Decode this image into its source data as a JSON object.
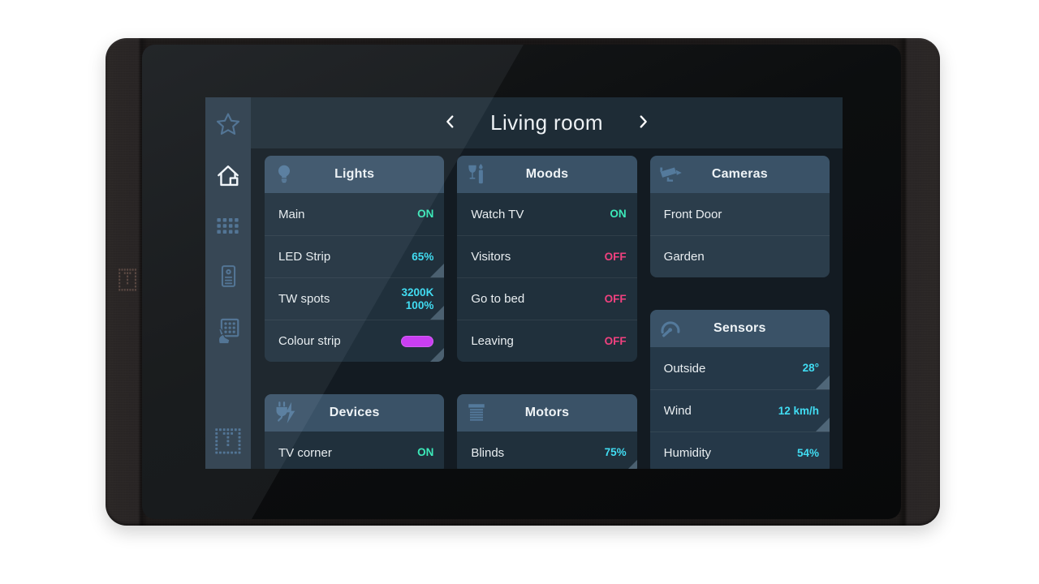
{
  "header": {
    "title": "Living room"
  },
  "sidebar": {
    "items": [
      {
        "id": "favourites",
        "icon": "star-icon",
        "active": false
      },
      {
        "id": "home",
        "icon": "home-icon",
        "active": true
      },
      {
        "id": "functions",
        "icon": "grid-dots-icon",
        "active": false
      },
      {
        "id": "intercom",
        "icon": "intercom-icon",
        "active": false
      },
      {
        "id": "touch-panel",
        "icon": "touch-keypad-icon",
        "active": false
      },
      {
        "id": "brand",
        "icon": "brand-logo-icon",
        "active": false
      }
    ]
  },
  "cards": {
    "lights": {
      "title": "Lights",
      "icon": "bulb-icon",
      "rows": [
        {
          "label": "Main",
          "value": "ON",
          "state": "on"
        },
        {
          "label": "LED Strip",
          "value": "65%",
          "state": "level",
          "grip": true
        },
        {
          "label": "TW spots",
          "value_lines": [
            "3200K",
            "100%"
          ],
          "state": "level",
          "grip": true
        },
        {
          "label": "Colour strip",
          "swatch": "#c93ef2",
          "grip": true
        }
      ]
    },
    "moods": {
      "title": "Moods",
      "icon": "moods-icon",
      "rows": [
        {
          "label": "Watch TV",
          "value": "ON",
          "state": "on"
        },
        {
          "label": "Visitors",
          "value": "OFF",
          "state": "off"
        },
        {
          "label": "Go to bed",
          "value": "OFF",
          "state": "off"
        },
        {
          "label": "Leaving",
          "value": "OFF",
          "state": "off"
        }
      ]
    },
    "cameras": {
      "title": "Cameras",
      "icon": "cctv-camera-icon",
      "row_bg": "#2b3d4b",
      "rows": [
        {
          "label": "Front Door"
        },
        {
          "label": "Garden"
        }
      ]
    },
    "devices": {
      "title": "Devices",
      "icon": "plug-icon",
      "rows": [
        {
          "label": "TV corner",
          "value": "ON",
          "state": "on"
        }
      ]
    },
    "motors": {
      "title": "Motors",
      "icon": "blinds-icon",
      "rows": [
        {
          "label": "Blinds",
          "value": "75%",
          "state": "level",
          "grip": true
        }
      ]
    },
    "sensors": {
      "title": "Sensors",
      "icon": "gauge-icon",
      "row_bg": "#253848",
      "rows": [
        {
          "label": "Outside",
          "value": "28°",
          "state": "level",
          "grip": true
        },
        {
          "label": "Wind",
          "value": "12 km/h",
          "state": "level",
          "grip": true
        },
        {
          "label": "Humidity",
          "value": "54%",
          "state": "level"
        }
      ]
    }
  },
  "layout_columns": [
    [
      "lights",
      "devices"
    ],
    [
      "moods",
      "motors"
    ],
    [
      "cameras",
      "sensors"
    ]
  ],
  "colors": {
    "on": "#3ce9b9",
    "off": "#f1417f",
    "level": "#41dcf2",
    "card_header": "#3a5267",
    "row_bg": "#20303c",
    "sidebar_icon": "#4a6e8f",
    "header_icon": "#547a9c",
    "swatch": "#c93ef2"
  }
}
